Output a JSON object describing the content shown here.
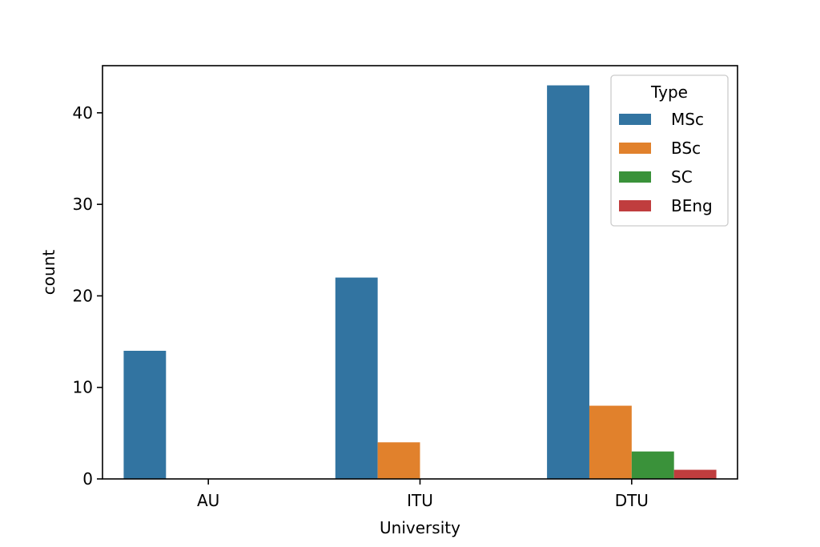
{
  "chart_data": {
    "type": "bar",
    "xlabel": "University",
    "ylabel": "count",
    "categories": [
      "AU",
      "ITU",
      "DTU"
    ],
    "series": [
      {
        "name": "MSc",
        "color": "#3274a1",
        "values": [
          14,
          22,
          43
        ]
      },
      {
        "name": "BSc",
        "color": "#e1812c",
        "values": [
          0,
          4,
          8
        ]
      },
      {
        "name": "SC",
        "color": "#3a923a",
        "values": [
          0,
          0,
          3
        ]
      },
      {
        "name": "BEng",
        "color": "#c03d3e",
        "values": [
          0,
          0,
          1
        ]
      }
    ],
    "ylim": [
      0,
      45.15
    ],
    "yticks": [
      0,
      10,
      20,
      30,
      40
    ],
    "legend": {
      "title": "Type",
      "position": "top-right"
    },
    "grid": false
  }
}
